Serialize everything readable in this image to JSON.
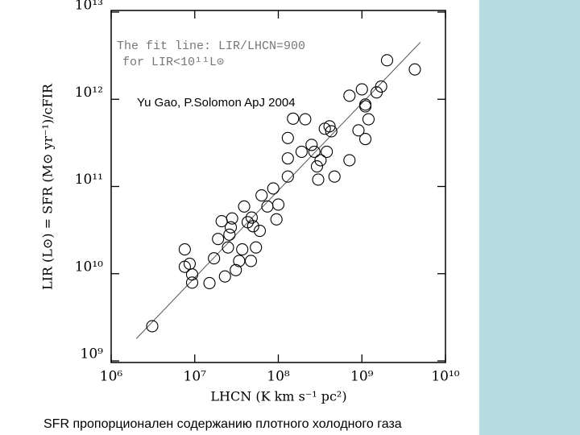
{
  "chart_data": {
    "type": "scatter",
    "title": "SFR пропорционален содержанию плотного холодного газа",
    "subtitle": "Yu Gao, P.Solomon ApJ 2004",
    "annotations": [
      "The fit line: LIR/LHCN=900",
      "for LIR<10¹¹L⊙"
    ],
    "x_label": "LHCN (K km s⁻¹ pc²)",
    "y_label": "LIR (L⊙) = SFR (M⊙ yr⁻¹)/cFIR",
    "log_x": true,
    "log_y": true,
    "color": "#000000",
    "xlim": [
      1000000.0,
      10000000000.0
    ],
    "ylim": [
      1000000000.0,
      10000000000000.0
    ],
    "xticks": [
      {
        "value": 1000000.0,
        "label": "10⁶"
      },
      {
        "value": 10000000.0,
        "label": "10⁷"
      },
      {
        "value": 100000000.0,
        "label": "10⁸"
      },
      {
        "value": 1000000000.0,
        "label": "10⁹"
      },
      {
        "value": 10000000000.0,
        "label": "10¹⁰"
      }
    ],
    "yticks": [
      {
        "value": 1000000000.0,
        "label": "10⁹"
      },
      {
        "value": 10000000000.0,
        "label": "10¹⁰"
      },
      {
        "value": 100000000000.0,
        "label": "10¹¹"
      },
      {
        "value": 1000000000000.0,
        "label": "10¹²"
      },
      {
        "value": 10000000000000.0,
        "label": "10¹³"
      }
    ],
    "x": [
      3100000.0,
      7600000.0,
      7600000.0,
      8700000.0,
      9300000.0,
      9300000.0,
      15000000.0,
      17000000.0,
      19000000.0,
      21000000.0,
      23000000.0,
      26000000.0,
      25000000.0,
      28000000.0,
      27000000.0,
      31000000.0,
      34000000.0,
      37000000.0,
      39000000.0,
      43000000.0,
      47000000.0,
      48000000.0,
      50000000.0,
      54000000.0,
      60000000.0,
      63000000.0,
      74000000.0,
      87000000.0,
      95000000.0,
      100000000.0,
      130000000.0,
      130000000.0,
      130000000.0,
      150000000.0,
      190000000.0,
      210000000.0,
      250000000.0,
      270000000.0,
      290000000.0,
      300000000.0,
      320000000.0,
      360000000.0,
      380000000.0,
      430000000.0,
      410000000.0,
      470000000.0,
      710000000.0,
      710000000.0,
      910000000.0,
      1000000000.0,
      1100000000.0,
      1100000000.0,
      1100000000.0,
      1200000000.0,
      1500000000.0,
      1700000000.0,
      2000000000.0,
      4300000000.0
    ],
    "values": [
      2500000000.0,
      19000000000.0,
      12000000000.0,
      13000000000.0,
      9800000000.0,
      7900000000.0,
      7800000000.0,
      15000000000.0,
      25000000000.0,
      40000000000.0,
      9300000000.0,
      28000000000.0,
      20000000000.0,
      43000000000.0,
      34000000000.0,
      11000000000.0,
      14000000000.0,
      19000000000.0,
      59000000000.0,
      39000000000.0,
      14000000000.0,
      44000000000.0,
      35000000000.0,
      20000000000.0,
      31000000000.0,
      79000000000.0,
      59000000000.0,
      95000000000.0,
      42000000000.0,
      62000000000.0,
      130000000000.0,
      210000000000.0,
      360000000000.0,
      600000000000.0,
      250000000000.0,
      590000000000.0,
      300000000000.0,
      250000000000.0,
      170000000000.0,
      120000000000.0,
      200000000000.0,
      460000000000.0,
      250000000000.0,
      430000000000.0,
      490000000000.0,
      130000000000.0,
      1100000000000.0,
      200000000000.0,
      440000000000.0,
      1300000000000.0,
      350000000000.0,
      870000000000.0,
      830000000000.0,
      590000000000.0,
      1200000000000.0,
      1400000000000.0,
      2800000000000.0,
      2200000000000.0
    ],
    "fit_line": {
      "x": [
        2000000.0,
        5000000000.0
      ],
      "values": [
        1800000000.0,
        4500000000000.0
      ],
      "color": "#555555"
    }
  }
}
